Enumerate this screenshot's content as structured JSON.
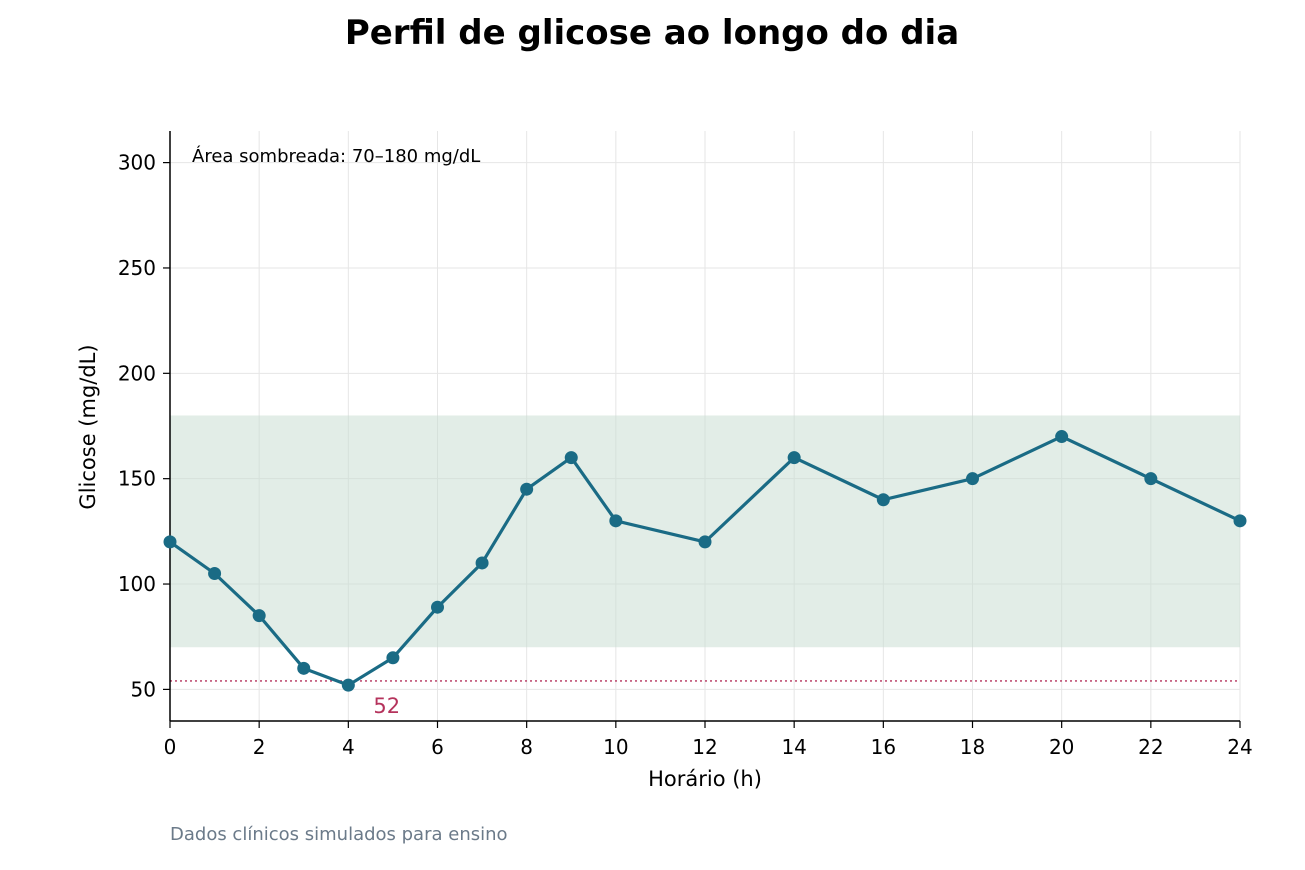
{
  "chart_data": {
    "type": "line",
    "title": "Perfil de glicose ao longo do dia",
    "xlabel": "Horário (h)",
    "ylabel": "Glicose (mg/dL)",
    "xlim": [
      0,
      24
    ],
    "ylim": [
      35,
      315
    ],
    "xticks": [
      0,
      2,
      4,
      6,
      8,
      10,
      12,
      14,
      16,
      18,
      20,
      22,
      24
    ],
    "yticks": [
      50,
      100,
      150,
      200,
      250,
      300
    ],
    "grid": true,
    "series": [
      {
        "x": [
          0,
          1,
          2,
          3,
          4,
          5,
          6,
          7,
          8,
          9,
          10,
          12,
          14,
          16,
          18,
          20,
          22,
          24
        ],
        "values": [
          120,
          105,
          85,
          60,
          52,
          65,
          89,
          110,
          145,
          160,
          130,
          120,
          160,
          140,
          150,
          170,
          150,
          130
        ],
        "color": "#1a6b85"
      }
    ],
    "target_range": {
      "low": 70,
      "high": 180,
      "color": "#c5dccf"
    },
    "hypo_threshold": {
      "value": 54,
      "color": "#b5335c"
    },
    "min_annotation": {
      "x": 4,
      "value": 52,
      "label": "52",
      "color": "#b5335c"
    },
    "annotation": "Área sombreada: 70–180 mg/dL",
    "source": "Dados clínicos simulados para ensino"
  }
}
